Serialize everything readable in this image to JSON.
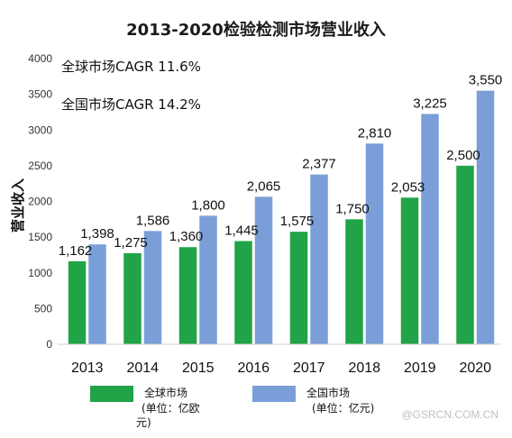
{
  "chart_data": {
    "type": "bar",
    "title": "2013-2020检验检测市场营业收入",
    "ylabel": "营业收入",
    "xlabel": "",
    "ylim": [
      0,
      4000
    ],
    "yticks": [
      0,
      500,
      1000,
      1500,
      2000,
      2500,
      3000,
      3500,
      4000
    ],
    "categories": [
      "2013",
      "2014",
      "2015",
      "2016",
      "2017",
      "2018",
      "2019",
      "2020"
    ],
    "series": [
      {
        "name": "全球市场",
        "unit_lines": [
          "(单位：亿欧",
          "元)"
        ],
        "color": "#21a347",
        "values": [
          1162,
          1275,
          1360,
          1445,
          1575,
          1750,
          2053,
          2500
        ]
      },
      {
        "name": "全国市场",
        "unit_lines": [
          "(单位：亿元)"
        ],
        "color": "#7a9fd8",
        "values": [
          1398,
          1586,
          1800,
          2065,
          2377,
          2810,
          3225,
          3550
        ]
      }
    ],
    "annotations": [
      "全球市场CAGR  11.6%",
      "全国市场CAGR  14.2%"
    ],
    "grid": false,
    "legend_position": "bottom"
  },
  "watermark": "@GSRCN.COM.CN"
}
